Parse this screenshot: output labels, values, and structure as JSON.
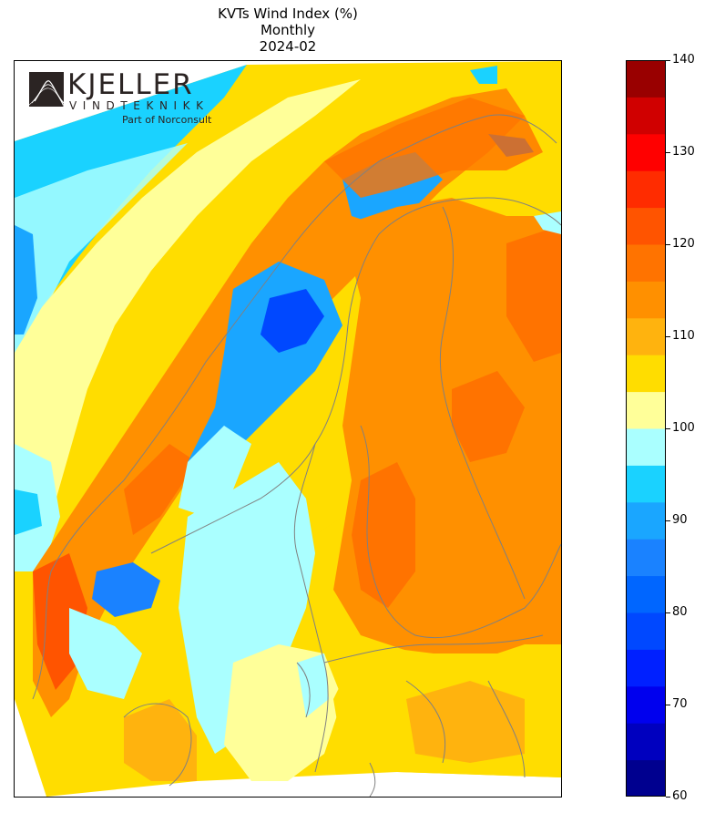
{
  "title": {
    "line1": "KVTs Wind Index (%)",
    "line2": "Monthly",
    "line3": "2024-02"
  },
  "logo": {
    "word": "KJELLER",
    "sub": "VINDTEKNIKK",
    "tag": "Part of Norconsult"
  },
  "colorbar": {
    "min": 60,
    "max": 140,
    "step": 4,
    "tick_labels": [
      "60",
      "70",
      "80",
      "90",
      "100",
      "110",
      "120",
      "130",
      "140"
    ],
    "tick_values": [
      60,
      70,
      80,
      90,
      100,
      110,
      120,
      130,
      140
    ],
    "colors": [
      "#00008f",
      "#0000bf",
      "#0000ee",
      "#0020ff",
      "#0048ff",
      "#0066ff",
      "#1a82ff",
      "#1aa6ff",
      "#1ad2ff",
      "#aaffff",
      "#ffff99",
      "#ffdd00",
      "#ffb30e",
      "#ff9000",
      "#ff7300",
      "#ff5400",
      "#ff2c00",
      "#ff0000",
      "#d00000",
      "#990000"
    ]
  },
  "legend_colors": {
    "sea_cyan": "#1ad2ff",
    "sea_light": "#aaffff",
    "neutral": "#ffff99",
    "mild_high": "#ffdd00",
    "high": "#ffb30e",
    "higher": "#ff9000",
    "peak": "#ff5400",
    "low": "#1aa6ff",
    "lower": "#0066ff",
    "border": "#808080"
  }
}
